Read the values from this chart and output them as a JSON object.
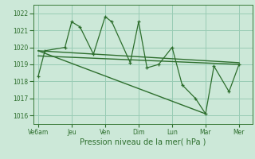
{
  "bg_color": "#cce8d8",
  "grid_color": "#99ccb4",
  "line_color": "#2d6e2d",
  "xlabel": "Pression niveau de la mer( hPa )",
  "ylim": [
    1015.5,
    1022.5
  ],
  "yticks": [
    1016,
    1017,
    1018,
    1019,
    1020,
    1021,
    1022
  ],
  "xtick_labels": [
    "Ve6am",
    "Jeu",
    "Ven",
    "Dim",
    "Lun",
    "Mar",
    "Mer"
  ],
  "xtick_pos": [
    0,
    2,
    4,
    6,
    8,
    10,
    12
  ],
  "series1_x": [
    0,
    0.4,
    1.6,
    2.0,
    2.5,
    3.3,
    4.0,
    4.4,
    5.5,
    6.0,
    6.5,
    7.2,
    8.0,
    8.6,
    9.4,
    10.0,
    10.5,
    11.4,
    12.0
  ],
  "series1_y": [
    1018.3,
    1019.8,
    1020.0,
    1021.5,
    1021.2,
    1019.6,
    1021.8,
    1021.5,
    1019.1,
    1021.5,
    1018.8,
    1019.0,
    1020.0,
    1017.8,
    1017.0,
    1016.1,
    1018.9,
    1017.4,
    1019.0
  ],
  "series2_x": [
    0,
    12.0
  ],
  "series2_y": [
    1019.8,
    1019.1
  ],
  "series3_x": [
    0,
    10.0
  ],
  "series3_y": [
    1019.8,
    1016.1
  ],
  "series4_x": [
    0,
    12.0
  ],
  "series4_y": [
    1019.5,
    1019.0
  ]
}
